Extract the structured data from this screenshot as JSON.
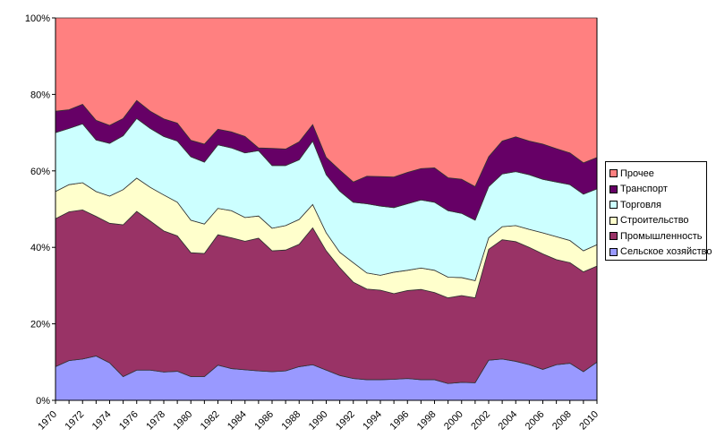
{
  "chart_data": {
    "type": "area",
    "stacked": "percent",
    "title": "",
    "xlabel": "",
    "ylabel": "",
    "ylim": [
      0,
      100
    ],
    "y_tick_labels": [
      "0%",
      "20%",
      "40%",
      "60%",
      "80%",
      "100%"
    ],
    "y_ticks": [
      0,
      20,
      40,
      60,
      80,
      100
    ],
    "x": [
      1970,
      1971,
      1972,
      1973,
      1974,
      1975,
      1976,
      1977,
      1978,
      1979,
      1980,
      1981,
      1982,
      1983,
      1984,
      1985,
      1986,
      1987,
      1988,
      1989,
      1990,
      1991,
      1992,
      1993,
      1994,
      1995,
      1996,
      1997,
      1998,
      1999,
      2000,
      2001,
      2002,
      2003,
      2004,
      2005,
      2006,
      2007,
      2008,
      2009,
      2010
    ],
    "x_tick_labels": [
      "1970",
      "1972",
      "1974",
      "1976",
      "1978",
      "1980",
      "1982",
      "1984",
      "1986",
      "1988",
      "1990",
      "1992",
      "1994",
      "1996",
      "1998",
      "2000",
      "2002",
      "2004",
      "2006",
      "2008",
      "2010"
    ],
    "legend_position": "right",
    "grid": false,
    "series": [
      {
        "name": "Сельское хозяйство",
        "color": "#9999FF",
        "values": [
          8.8,
          10.4,
          10.8,
          11.6,
          9.8,
          6.2,
          7.9,
          7.9,
          7.4,
          7.6,
          6.2,
          6.2,
          9.2,
          8.3,
          8.0,
          7.7,
          7.5,
          7.7,
          8.8,
          9.3,
          7.9,
          6.5,
          5.7,
          5.4,
          5.4,
          5.5,
          5.7,
          5.4,
          5.4,
          4.4,
          4.7,
          4.6,
          10.5,
          10.8,
          10.2,
          9.3,
          8.1,
          9.3,
          9.7,
          7.5,
          10.0
        ]
      },
      {
        "name": "Промышленность",
        "color": "#993366",
        "values": [
          38.7,
          38.9,
          39.0,
          36.5,
          36.5,
          39.7,
          41.5,
          39.0,
          36.9,
          35.4,
          32.4,
          32.2,
          34.1,
          34.2,
          33.6,
          34.7,
          31.6,
          31.6,
          32.0,
          35.8,
          31.2,
          28.2,
          25.2,
          23.7,
          23.4,
          22.4,
          23.0,
          23.6,
          22.8,
          22.4,
          22.7,
          22.2,
          29.0,
          31.2,
          31.3,
          30.7,
          30.2,
          27.5,
          26.3,
          26.1,
          25.1
        ]
      },
      {
        "name": "Строительство",
        "color": "#FFFFCC",
        "values": [
          7.1,
          7.1,
          7.1,
          6.5,
          7.1,
          9.2,
          8.7,
          8.8,
          9.4,
          8.8,
          8.5,
          7.7,
          6.9,
          7.1,
          6.2,
          5.8,
          5.9,
          6.4,
          6.5,
          6.1,
          4.7,
          4.0,
          5.1,
          4.2,
          3.9,
          5.6,
          5.3,
          5.6,
          5.8,
          5.4,
          4.7,
          4.5,
          3.0,
          3.4,
          4.2,
          4.7,
          5.5,
          6.0,
          5.8,
          5.5,
          5.6
        ]
      },
      {
        "name": "Торговля",
        "color": "#CCFFFF",
        "values": [
          15.4,
          14.7,
          15.4,
          13.5,
          13.8,
          14.1,
          15.6,
          15.4,
          15.3,
          16.0,
          16.6,
          16.2,
          16.6,
          16.4,
          16.9,
          17.1,
          16.4,
          15.7,
          15.6,
          16.6,
          15.2,
          16.0,
          15.8,
          18.1,
          18.1,
          16.9,
          17.4,
          17.8,
          17.8,
          17.4,
          16.8,
          15.8,
          13.4,
          13.8,
          14.1,
          14.3,
          14.0,
          14.3,
          14.6,
          14.8,
          14.6
        ]
      },
      {
        "name": "Транспорт",
        "color": "#660066",
        "values": [
          5.6,
          4.9,
          5.1,
          5.1,
          4.7,
          4.5,
          4.7,
          4.5,
          4.6,
          4.7,
          4.3,
          4.7,
          4.1,
          4.2,
          4.3,
          0.7,
          4.5,
          4.3,
          4.7,
          4.3,
          4.5,
          5.5,
          5.3,
          7.2,
          7.7,
          8.0,
          8.2,
          8.2,
          9.0,
          8.6,
          8.9,
          8.8,
          7.8,
          8.6,
          9.1,
          8.8,
          9.2,
          8.7,
          8.3,
          8.2,
          8.2
        ]
      },
      {
        "name": "Прочее",
        "color": "#FF8080",
        "values": [
          24.4,
          24.0,
          22.6,
          26.8,
          28.1,
          26.3,
          21.6,
          24.4,
          26.4,
          27.5,
          32.0,
          33.0,
          29.1,
          29.8,
          31.0,
          34.0,
          34.1,
          34.3,
          32.4,
          27.9,
          36.5,
          39.8,
          42.9,
          41.4,
          41.5,
          41.6,
          40.4,
          39.4,
          39.2,
          41.8,
          42.2,
          44.1,
          36.3,
          32.2,
          31.1,
          32.2,
          33.0,
          34.2,
          35.3,
          37.9,
          36.5
        ]
      }
    ]
  }
}
